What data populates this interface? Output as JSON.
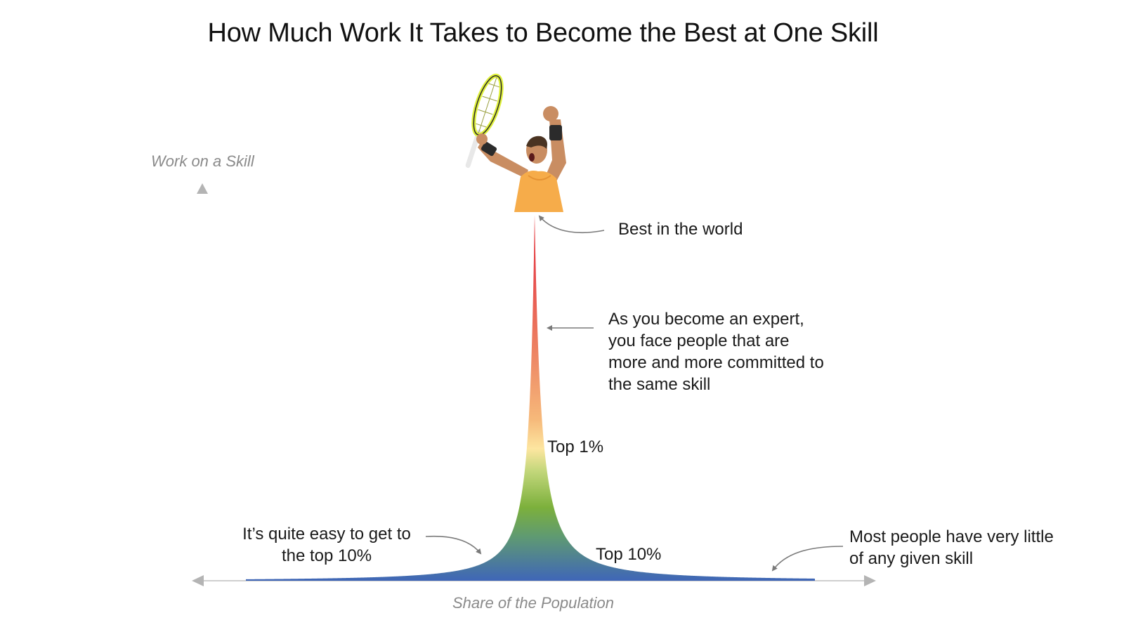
{
  "title": "How Much Work It Takes to Become the Best at One Skill",
  "axes": {
    "y_label": "Work on a Skill",
    "x_label": "Share of the Population"
  },
  "annotations": {
    "best": "Best in the world",
    "expert": [
      "As you become an expert,",
      "you face people that are",
      "more and more committed to",
      "the same skill"
    ],
    "top1": "Top 1%",
    "top10": "Top 10%",
    "easy": [
      "It’s quite easy to get to",
      "the top 10%"
    ],
    "most": [
      "Most people have very little",
      "of any given skill"
    ]
  },
  "figure": {
    "icon": "tennis-player-celebrating-icon",
    "colors": {
      "base": "#3f66b8",
      "low": "#7cb03c",
      "mid": "#fde6a0",
      "high": "#f0a266",
      "peak": "#e2262b",
      "axis": "#bdbdbd",
      "arrow": "#7a7a7a",
      "shirt": "#f6ac4a",
      "skin": "#c98d62",
      "racket": "#dff13a"
    }
  }
}
